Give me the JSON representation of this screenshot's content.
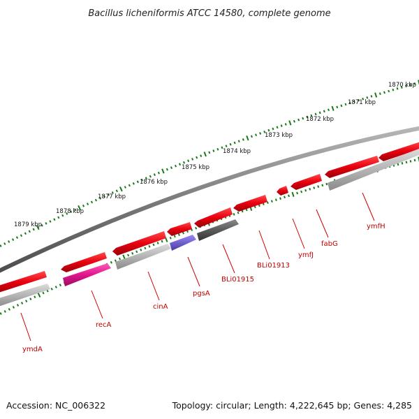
{
  "title": "Bacillus licheniformis ATCC 14580, complete genome",
  "footer": {
    "accession": "Accession: NC_006322",
    "summary": "Topology: circular; Length: 4,222,645 bp; Genes: 4,285"
  },
  "colors": {
    "forward_gene": "#e8000f",
    "reverse_gene": "#b4b4b4",
    "ruler_ticks": "#1a7a1a",
    "backbone": "#7a7a7a",
    "label": "#c00000",
    "magenta_gene": "#e0158c",
    "purple_gene": "#7060d0",
    "dark_gene": "#5a5a5a"
  },
  "ruler": {
    "start_kbp": 1870,
    "end_kbp": 1879,
    "labels": [
      "1870 kbp",
      "1871 kbp",
      "1872 kbp",
      "1873 kbp",
      "1874 kbp",
      "1875 kbp",
      "1876 kbp",
      "1877 kbp",
      "1878 kbp",
      "1879 kbp"
    ]
  },
  "genes": [
    {
      "label": "ymfH",
      "color": "#e8000f",
      "strand": "forward"
    },
    {
      "label": "fabG",
      "color": "#e8000f",
      "strand": "forward"
    },
    {
      "label": "ymfJ",
      "color": "#e8000f",
      "strand": "forward"
    },
    {
      "label": "BLi01913",
      "color": "#e8000f",
      "strand": "forward"
    },
    {
      "label": "BLi01915",
      "color": "#5a5a5a",
      "strand": "reverse"
    },
    {
      "label": "pgsA",
      "color": "#7060d0",
      "strand": "reverse"
    },
    {
      "label": "cinA",
      "color": "#b4b4b4",
      "strand": "reverse"
    },
    {
      "label": "recA",
      "color": "#e0158c",
      "strand": "reverse"
    },
    {
      "label": "ymdA",
      "color": "#b4b4b4",
      "strand": "reverse"
    }
  ]
}
